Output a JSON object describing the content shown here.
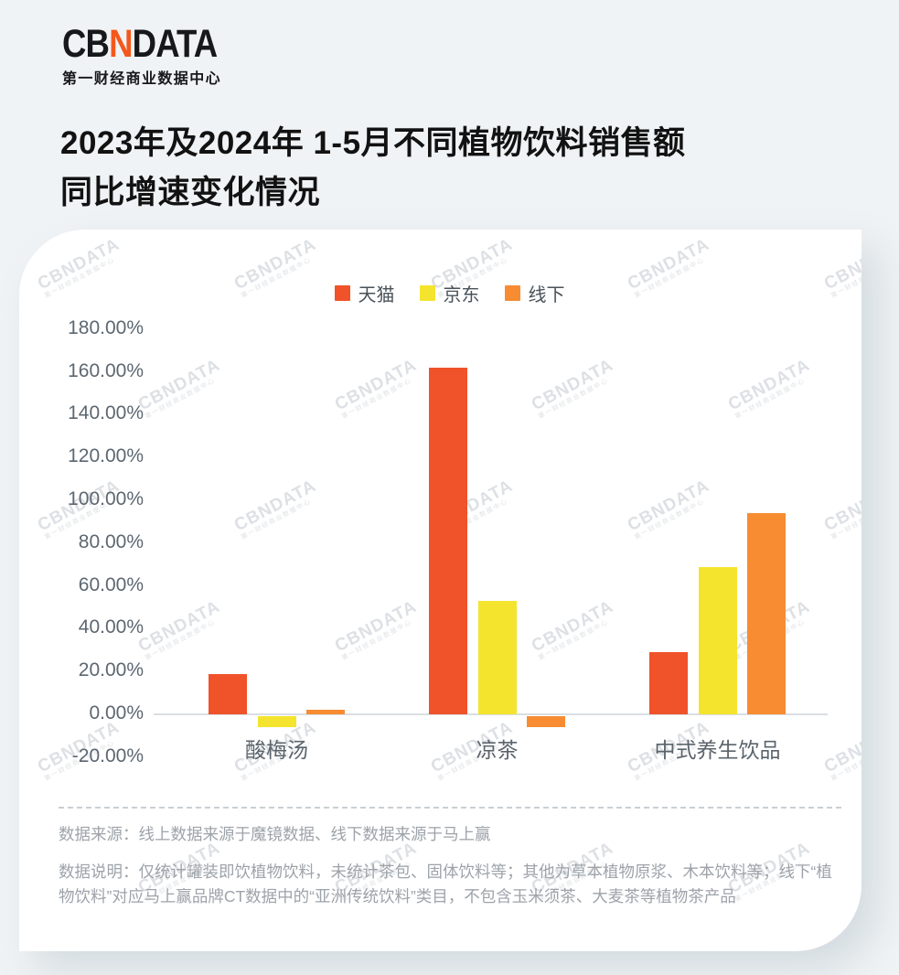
{
  "header": {
    "logo_prefix": "CB",
    "logo_accent": "N",
    "logo_suffix": "DATA",
    "logo_accent_color": "#F4581C",
    "logo_subtitle": "第一财经商业数据中心",
    "title_line1": "2023年及2024年 1-5月不同植物饮料销售额",
    "title_line2": "同比增速变化情况"
  },
  "watermark": {
    "text": "CBNDATA",
    "subtext": "第一财经商业数据中心"
  },
  "chart_data": {
    "type": "bar",
    "title": "2023年及2024年 1-5月不同植物饮料销售额同比增速变化情况",
    "categories": [
      "酸梅汤",
      "凉茶",
      "中式养生饮品"
    ],
    "series": [
      {
        "name": "天猫",
        "color": "#F0522A",
        "values": [
          19,
          162,
          29
        ]
      },
      {
        "name": "京东",
        "color": "#F4E42E",
        "values": [
          -5,
          53,
          69
        ]
      },
      {
        "name": "线下",
        "color": "#F78C33",
        "values": [
          2,
          -5,
          94
        ]
      }
    ],
    "unit": "%",
    "ylim": [
      -20,
      180
    ],
    "y_tick_step": 20,
    "y_ticks": [
      "180.00%",
      "160.00%",
      "140.00%",
      "120.00%",
      "100.00%",
      "80.00%",
      "60.00%",
      "40.00%",
      "20.00%",
      "0.00%",
      "-20.00%"
    ],
    "legend_position": "top",
    "grid": false
  },
  "footer": {
    "source_label": "数据来源：",
    "source_text": "线上数据来源于魔镜数据、线下数据来源于马上赢",
    "note_label": "数据说明：",
    "note_text": "仅统计罐装即饮植物饮料，未统计茶包、固体饮料等；其他为草本植物原浆、木本饮料等；线下“植物饮料”对应马上赢品牌CT数据中的“亚洲传统饮料”类目，不包含玉米须茶、大麦茶等植物茶产品"
  }
}
